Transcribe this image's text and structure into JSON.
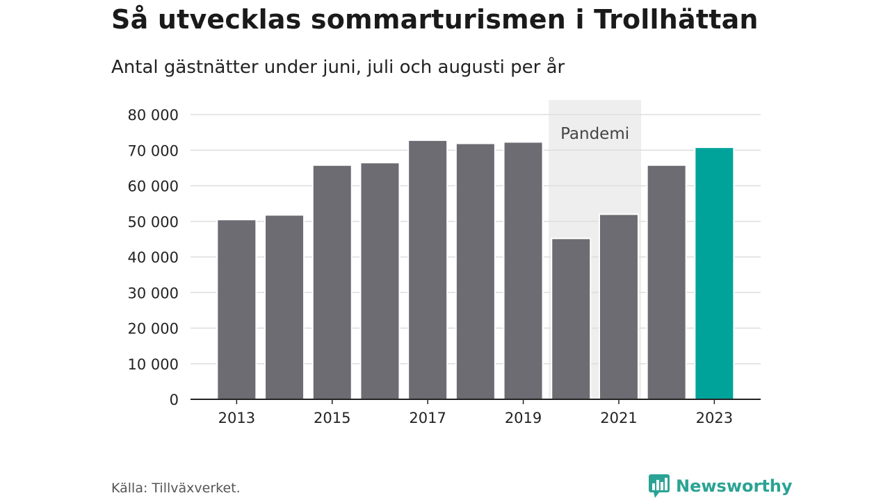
{
  "header": {
    "title": "Så utvecklas sommarturismen i Trollhättan",
    "subtitle": "Antal gästnätter under juni, juli och augusti per år"
  },
  "footer": {
    "source": "Källa: Tillväxverket.",
    "brand": "Newsworthy"
  },
  "colors": {
    "bar": "#6d6c72",
    "highlight": "#00a39a",
    "shade": "#eeeeee",
    "grid": "#dddddd",
    "brand": "#2aa394"
  },
  "chart_data": {
    "type": "bar",
    "title": "Så utvecklas sommarturismen i Trollhättan",
    "subtitle": "Antal gästnätter under juni, juli och augusti per år",
    "categories": [
      "2013",
      "2014",
      "2015",
      "2016",
      "2017",
      "2018",
      "2019",
      "2020",
      "2021",
      "2022",
      "2023"
    ],
    "values": [
      50500,
      51800,
      65800,
      66500,
      72800,
      71900,
      72300,
      45200,
      52000,
      65800,
      70800
    ],
    "highlight_category": "2023",
    "xtick_labels": [
      "2013",
      "2015",
      "2017",
      "2019",
      "2021",
      "2023"
    ],
    "ytick_labels": [
      "0",
      "10 000",
      "20 000",
      "30 000",
      "40 000",
      "50 000",
      "60 000",
      "70 000",
      "80 000"
    ],
    "yticks": [
      0,
      10000,
      20000,
      30000,
      40000,
      50000,
      60000,
      70000,
      80000
    ],
    "ylim": [
      0,
      80000
    ],
    "grid": true,
    "annotation": {
      "label": "Pandemi",
      "from": "2020",
      "to": "2021"
    }
  }
}
